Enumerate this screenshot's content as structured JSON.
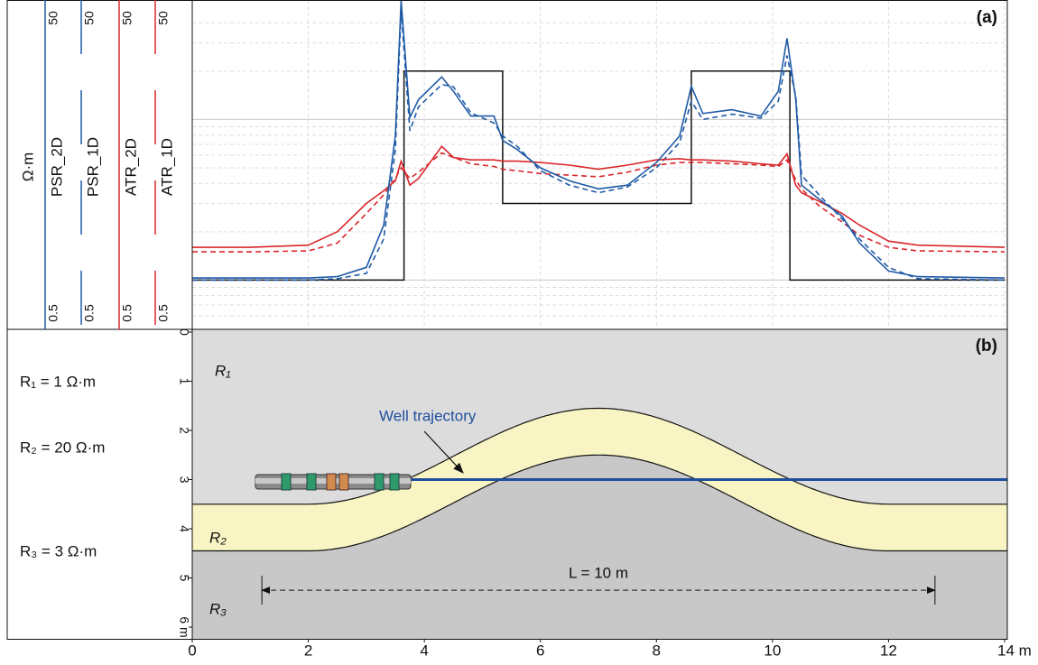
{
  "chart_data": [
    {
      "type": "line",
      "title": "(a)",
      "ylabel": "Ω·m",
      "log_y": true,
      "grid": true,
      "xlim": [
        0,
        14
      ],
      "ylim": [
        0.5,
        50
      ],
      "yticks": [
        0.5,
        1,
        10,
        50
      ],
      "x": [
        0,
        1,
        2,
        2.5,
        3,
        3.3,
        3.5,
        3.6,
        3.75,
        3.9,
        4.3,
        4.5,
        4.8,
        5.2,
        5.35,
        5.6,
        6,
        6.5,
        7,
        7.5,
        8,
        8.4,
        8.6,
        8.8,
        9.3,
        9.8,
        10.1,
        10.25,
        10.4,
        10.5,
        10.8,
        11.2,
        11.5,
        12,
        12.5,
        14
      ],
      "series": [
        {
          "name": "PSR_2D",
          "color": "#1f5aa6",
          "dash": false,
          "values": [
            1.03,
            1.03,
            1.03,
            1.05,
            1.2,
            2.2,
            7.9,
            55,
            10.3,
            13.3,
            18.4,
            15,
            10.5,
            10.5,
            7.4,
            6.5,
            5.0,
            4.15,
            3.7,
            3.9,
            5.4,
            7.9,
            16.1,
            10.9,
            11.5,
            10.5,
            15,
            32,
            13.3,
            3.9,
            3.2,
            2.5,
            1.7,
            1.14,
            1.05,
            1.03
          ]
        },
        {
          "name": "PSR_1D",
          "color": "#1f5aa6",
          "dash": true,
          "values": [
            1.0,
            1.0,
            1.0,
            1.02,
            1.1,
            1.8,
            6.5,
            48,
            8.5,
            12,
            16.5,
            16,
            11,
            9.5,
            7.9,
            6.8,
            4.8,
            3.9,
            3.5,
            3.8,
            5.0,
            7.2,
            13,
            10,
            10.8,
            10.2,
            13,
            25,
            14,
            4.5,
            3.4,
            2.4,
            1.8,
            1.2,
            1.02,
            1.0
          ]
        },
        {
          "name": "ATR_2D",
          "color": "#d9262b",
          "dash": false,
          "values": [
            1.6,
            1.6,
            1.65,
            2.0,
            3.0,
            3.6,
            4.15,
            5.5,
            3.9,
            4.3,
            6.8,
            5.8,
            5.6,
            5.6,
            5.5,
            5.5,
            5.4,
            5.2,
            4.9,
            5.2,
            5.6,
            5.7,
            5.6,
            5.6,
            5.5,
            5.3,
            5.2,
            6.1,
            3.9,
            3.5,
            3.1,
            2.6,
            2.2,
            1.75,
            1.65,
            1.6
          ]
        },
        {
          "name": "ATR_1D",
          "color": "#d9262b",
          "dash": true,
          "values": [
            1.5,
            1.5,
            1.52,
            1.7,
            2.6,
            3.4,
            4.3,
            5.0,
            4.3,
            4.7,
            6.2,
            5.8,
            5.3,
            5.1,
            4.9,
            4.8,
            4.6,
            4.5,
            4.4,
            4.7,
            5.2,
            5.4,
            5.4,
            5.4,
            5.3,
            5.2,
            5.1,
            5.6,
            4.2,
            3.7,
            2.9,
            2.3,
            1.9,
            1.6,
            1.52,
            1.5
          ]
        },
        {
          "color": "#111111",
          "dash": false,
          "x": [
            0,
            3.65,
            3.65,
            5.35,
            5.35,
            8.6,
            8.6,
            10.3,
            10.3,
            14
          ],
          "values": [
            1,
            1,
            20,
            20,
            3,
            3,
            20,
            20,
            1,
            1
          ]
        }
      ]
    },
    {
      "type": "section",
      "title": "(b)",
      "xlim": [
        0,
        14
      ],
      "xticks": [
        0,
        2,
        4,
        6,
        8,
        10,
        12,
        {
          "value": 14,
          "label": "14 m"
        }
      ],
      "depth_lim": [
        0,
        6
      ],
      "depth_ticks": [
        0,
        1,
        2,
        3,
        4,
        5,
        {
          "value": 6,
          "label": "6 m"
        }
      ],
      "layers": [
        {
          "name": "R₁",
          "label": "R₁ = 1 Ω·m",
          "color": "#dcdcdc"
        },
        {
          "name": "R₂",
          "label": "R₂ = 20 Ω·m",
          "color": "#f8f4c4"
        },
        {
          "name": "R₃",
          "label": "R₃ = 3 Ω·m",
          "color": "#c8c8c8"
        }
      ],
      "boundaries": [
        {
          "flat_depth": 3.5,
          "crest_depth": 1.55,
          "x_start": 2,
          "x_end": 12
        },
        {
          "flat_depth": 4.45,
          "crest_depth": 2.5,
          "x_start": 2,
          "x_end": 12
        }
      ],
      "well": {
        "label": "Well trajectory",
        "depth": 3.0,
        "x_start": 1.1,
        "color": "#1f4e9c"
      },
      "dimension": {
        "label": "L = 10 m",
        "x": [
          1.2,
          12.8
        ],
        "depth": 5.25
      }
    }
  ]
}
